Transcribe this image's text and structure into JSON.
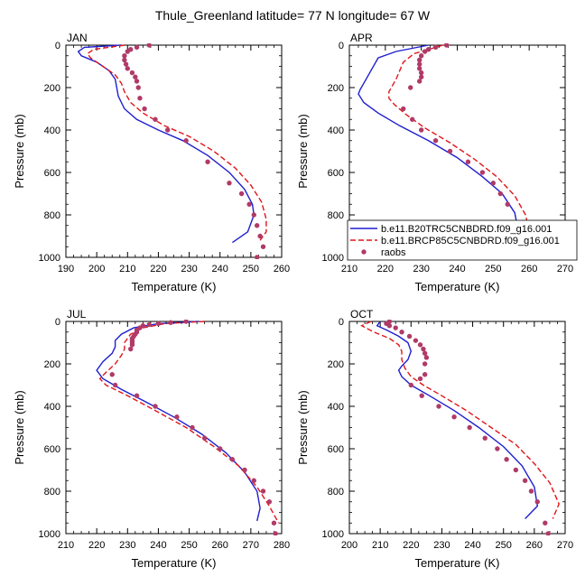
{
  "title": "Thule_Greenland  latitude= 77 N longitude= 67 W",
  "colors": {
    "model1": "#1f1fcf",
    "model2": "#e0151a",
    "raobs": "#b03a68"
  },
  "legend": {
    "entries": [
      {
        "label": "b.e11.B20TRC5CNBDRD.f09_g16.001",
        "style": "solid",
        "color": "#1f1fcf"
      },
      {
        "label": "b.e11.BRCP85C5CNBDRD.f09_g16.001",
        "style": "dashed",
        "color": "#e0151a"
      },
      {
        "label": "raobs",
        "style": "dot",
        "color": "#b03a68"
      }
    ]
  },
  "chart_data": [
    {
      "type": "line",
      "month": "JAN",
      "xlabel": "Temperature (K)",
      "ylabel": "Pressure (mb)",
      "xlim": [
        190,
        260
      ],
      "ylim": [
        1000,
        0
      ],
      "xticks": [
        "190",
        "200",
        "210",
        "220",
        "230",
        "240",
        "250",
        "260"
      ],
      "yticks": [
        "0",
        "200",
        "400",
        "600",
        "800",
        "1000"
      ],
      "series": [
        {
          "name": "b.e11.B20TRC5CNBDRD.f09_g16.001",
          "style": "solid",
          "x": [
            208,
            196,
            194,
            195,
            200,
            204,
            206,
            206.5,
            207,
            209,
            213,
            220,
            228,
            236,
            243,
            248,
            250.5,
            251,
            249,
            244
          ],
          "y": [
            0,
            10,
            30,
            50,
            80,
            120,
            160,
            200,
            240,
            300,
            350,
            400,
            450,
            520,
            600,
            680,
            750,
            800,
            880,
            930
          ]
        },
        {
          "name": "b.e11.BRCP85C5CNBDRD.f09_g16.001",
          "style": "dashed",
          "x": [
            209,
            199,
            197,
            198,
            202,
            206,
            208,
            209,
            211,
            215,
            222,
            230,
            238,
            245,
            250,
            253.5,
            255,
            255,
            253
          ],
          "y": [
            0,
            20,
            40,
            60,
            100,
            140,
            180,
            220,
            270,
            320,
            380,
            430,
            500,
            580,
            660,
            740,
            820,
            880,
            920
          ]
        },
        {
          "name": "raobs",
          "style": "dot",
          "x": [
            217,
            213,
            211,
            210,
            209,
            209,
            209.5,
            210,
            211.5,
            212.5,
            213,
            213.5,
            214,
            215.5,
            219,
            223,
            229,
            236,
            243,
            247,
            249.5,
            251,
            252,
            253,
            254,
            252
          ],
          "y": [
            0,
            10,
            20,
            30,
            50,
            70,
            90,
            110,
            130,
            150,
            170,
            200,
            250,
            300,
            350,
            400,
            450,
            550,
            650,
            700,
            750,
            800,
            850,
            900,
            950,
            1000
          ]
        }
      ]
    },
    {
      "type": "line",
      "month": "APR",
      "xlabel": "Temperature (K)",
      "ylabel": "Pressure (mb)",
      "xlim": [
        210,
        270
      ],
      "ylim": [
        1000,
        0
      ],
      "xticks": [
        "210",
        "220",
        "230",
        "240",
        "250",
        "260",
        "270"
      ],
      "yticks": [
        "0",
        "200",
        "400",
        "600",
        "800",
        "1000"
      ],
      "series": [
        {
          "name": "b.e11.B20TRC5CNBDRD.f09_g16.001",
          "style": "solid",
          "x": [
            232,
            223,
            218,
            217,
            216,
            215,
            214,
            213,
            212.5,
            214,
            218,
            224,
            232,
            240,
            247,
            252.5,
            256,
            257,
            256
          ],
          "y": [
            0,
            30,
            60,
            90,
            120,
            150,
            180,
            210,
            230,
            270,
            320,
            380,
            450,
            530,
            620,
            700,
            790,
            880,
            940
          ]
        },
        {
          "name": "b.e11.BRCP85C5CNBDRD.f09_g16.001",
          "style": "dashed",
          "x": [
            236,
            228,
            225,
            224,
            223,
            222,
            221,
            221,
            222.5,
            226,
            231,
            238,
            245,
            251,
            256,
            259,
            260,
            259
          ],
          "y": [
            0,
            40,
            80,
            120,
            160,
            190,
            220,
            250,
            280,
            330,
            390,
            460,
            540,
            620,
            710,
            800,
            880,
            920
          ]
        },
        {
          "name": "raobs",
          "style": "dot",
          "x": [
            237,
            234,
            232,
            231,
            230,
            229.5,
            229.5,
            229.5,
            230,
            230,
            229.5,
            227,
            225,
            227.5,
            230,
            234,
            238,
            243,
            247,
            250,
            252,
            254,
            256,
            257.5
          ],
          "y": [
            0,
            10,
            20,
            30,
            50,
            70,
            90,
            110,
            130,
            150,
            170,
            200,
            300,
            350,
            400,
            450,
            500,
            550,
            600,
            650,
            700,
            750,
            850,
            1000
          ]
        }
      ]
    },
    {
      "type": "line",
      "month": "JUL",
      "xlabel": "Temperature (K)",
      "ylabel": "Pressure (mb)",
      "xlim": [
        210,
        280
      ],
      "ylim": [
        1000,
        0
      ],
      "xticks": [
        "210",
        "220",
        "230",
        "240",
        "250",
        "260",
        "270",
        "280"
      ],
      "yticks": [
        "0",
        "200",
        "400",
        "600",
        "800",
        "1000"
      ],
      "series": [
        {
          "name": "b.e11.B20TRC5CNBDRD.f09_g16.001",
          "style": "solid",
          "x": [
            253,
            240,
            232,
            228,
            226,
            226,
            225,
            222,
            220,
            222,
            228,
            236,
            245,
            254,
            262,
            268,
            272,
            273,
            272
          ],
          "y": [
            0,
            10,
            30,
            60,
            90,
            120,
            150,
            190,
            230,
            270,
            320,
            380,
            450,
            530,
            620,
            710,
            800,
            880,
            940
          ]
        },
        {
          "name": "b.e11.BRCP85C5CNBDRD.f09_g16.001",
          "style": "dashed",
          "x": [
            255,
            242,
            235,
            231,
            229,
            229,
            228,
            226,
            223,
            221,
            223,
            230,
            239,
            249,
            258,
            266,
            272,
            276,
            279
          ],
          "y": [
            0,
            10,
            30,
            60,
            100,
            130,
            160,
            200,
            240,
            270,
            300,
            350,
            420,
            500,
            590,
            680,
            780,
            870,
            950
          ]
        },
        {
          "name": "raobs",
          "style": "dot",
          "x": [
            249,
            244,
            240,
            237,
            235,
            234,
            233,
            233,
            232.5,
            232,
            231.5,
            231.5,
            231.5,
            231.5,
            231,
            225,
            226,
            233,
            239,
            246,
            251,
            255,
            260,
            264,
            268,
            271,
            274,
            276,
            277.5,
            278
          ],
          "y": [
            0,
            5,
            10,
            15,
            20,
            30,
            40,
            50,
            60,
            70,
            80,
            90,
            100,
            110,
            130,
            250,
            300,
            350,
            400,
            450,
            500,
            550,
            600,
            650,
            700,
            750,
            800,
            850,
            950,
            1000
          ]
        }
      ]
    },
    {
      "type": "line",
      "month": "OCT",
      "xlabel": "Temperature (K)",
      "ylabel": "Pressure (mb)",
      "xlim": [
        200,
        270
      ],
      "ylim": [
        1000,
        0
      ],
      "xticks": [
        "200",
        "210",
        "220",
        "230",
        "240",
        "250",
        "260",
        "270"
      ],
      "yticks": [
        "0",
        "200",
        "400",
        "600",
        "800",
        "1000"
      ],
      "series": [
        {
          "name": "b.e11.B20TRC5CNBDRD.f09_g16.001",
          "style": "solid",
          "x": [
            210,
            209,
            212,
            216,
            219,
            220,
            219,
            217,
            216,
            217,
            220,
            226,
            234,
            242,
            250,
            256,
            260,
            261,
            257
          ],
          "y": [
            0,
            20,
            40,
            70,
            100,
            140,
            180,
            210,
            230,
            260,
            300,
            350,
            420,
            500,
            590,
            680,
            780,
            870,
            930
          ]
        },
        {
          "name": "b.e11.BRCP85C5CNBDRD.f09_g16.001",
          "style": "dashed",
          "x": [
            207,
            204,
            208,
            213,
            216,
            217,
            217,
            218,
            220,
            224,
            230,
            238,
            246,
            254,
            260,
            265,
            268,
            266
          ],
          "y": [
            0,
            20,
            50,
            80,
            110,
            140,
            180,
            220,
            260,
            300,
            350,
            420,
            500,
            580,
            670,
            760,
            860,
            930
          ]
        },
        {
          "name": "raobs",
          "style": "dot",
          "x": [
            213,
            212,
            213,
            215,
            217,
            219.5,
            221.5,
            223,
            224,
            224.5,
            225,
            224.5,
            224.5,
            223,
            220,
            223.5,
            229,
            234,
            239,
            244,
            248,
            251,
            254,
            257,
            259,
            261,
            263.5,
            264.5
          ],
          "y": [
            0,
            10,
            20,
            30,
            50,
            70,
            90,
            110,
            130,
            150,
            170,
            200,
            250,
            270,
            300,
            350,
            400,
            450,
            500,
            550,
            600,
            650,
            700,
            750,
            800,
            850,
            950,
            1000
          ]
        }
      ]
    }
  ]
}
